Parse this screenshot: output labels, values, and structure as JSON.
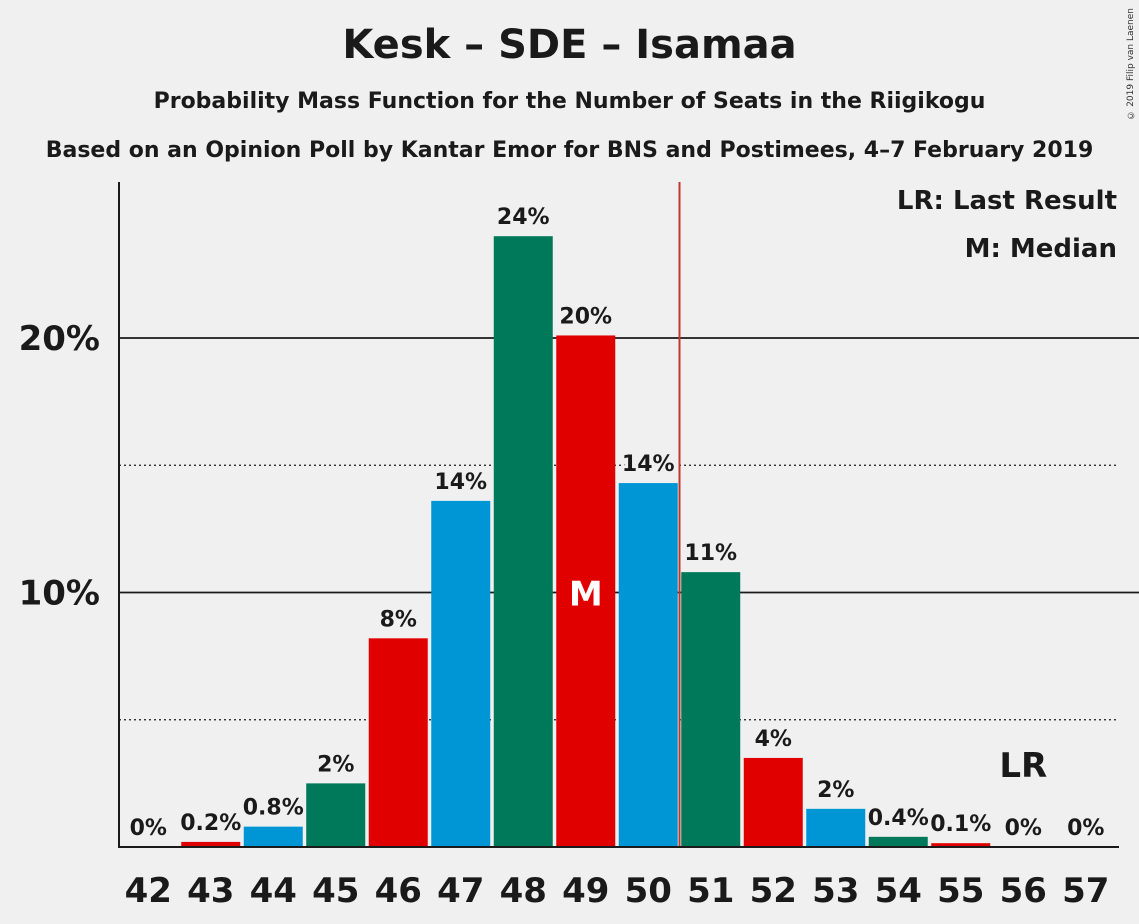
{
  "title": "Kesk – SDE – Isamaa",
  "subtitle": "Probability Mass Function for the Number of Seats in the Riigikogu",
  "subtitle2": "Based on an Opinion Poll by Kantar Emor for BNS and Postimees, 4–7 February 2019",
  "copyright": "© 2019 Filip van Laenen",
  "legend": {
    "last_result": "LR: Last Result",
    "median": "M: Median"
  },
  "markers": {
    "median_label": "M",
    "last_result_label": "LR"
  },
  "colors": {
    "green": "#00795a",
    "red": "#e10000",
    "blue": "#0096d6",
    "last_result_line": "#c0392b"
  },
  "chart_data": {
    "type": "bar",
    "categories": [
      "42",
      "43",
      "44",
      "45",
      "46",
      "47",
      "48",
      "49",
      "50",
      "51",
      "52",
      "53",
      "54",
      "55",
      "56",
      "57"
    ],
    "values": [
      0,
      0.2,
      0.8,
      2.5,
      8.2,
      13.6,
      24.0,
      20.1,
      14.3,
      10.8,
      3.5,
      1.5,
      0.4,
      0.15,
      0,
      0
    ],
    "data_labels": [
      "0%",
      "0.2%",
      "0.8%",
      "2%",
      "8%",
      "14%",
      "24%",
      "20%",
      "14%",
      "11%",
      "4%",
      "2%",
      "0.4%",
      "0.1%",
      "0%",
      "0%"
    ],
    "bar_colors": [
      "green",
      "red",
      "blue",
      "green",
      "red",
      "blue",
      "green",
      "red",
      "blue",
      "green",
      "red",
      "blue",
      "green",
      "red",
      "blue",
      "green"
    ],
    "y_ticks": [
      10,
      20
    ],
    "y_tick_labels": [
      "10%",
      "20%"
    ],
    "ylim": [
      0,
      26
    ],
    "median_seat": "49",
    "last_result_between": [
      "50",
      "51"
    ],
    "last_result_label_seat": "56",
    "xlabel": "",
    "ylabel": ""
  }
}
